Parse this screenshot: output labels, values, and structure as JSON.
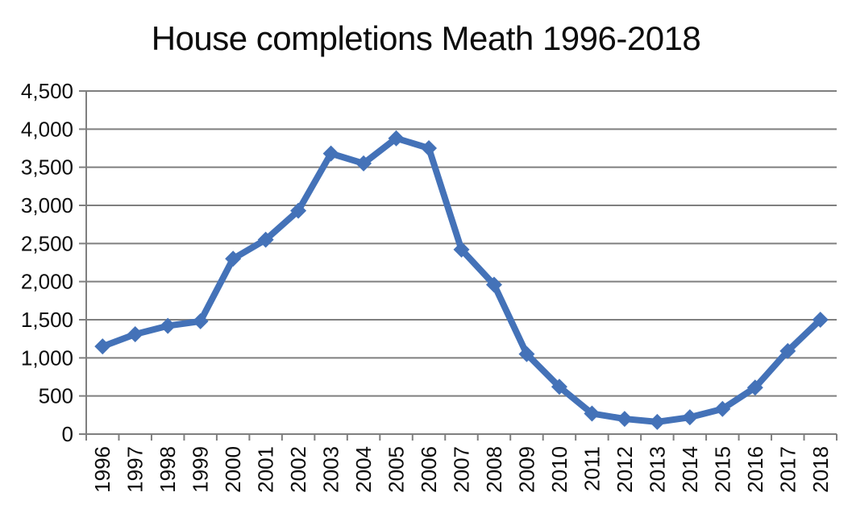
{
  "title": "House completions Meath 1996-2018",
  "colors": {
    "series": "#4472b8",
    "grid": "#7f7f7f",
    "axis": "#7f7f7f",
    "text": "#0d0d0d",
    "background": "#ffffff"
  },
  "chart_data": {
    "type": "line",
    "title": "House completions Meath 1996-2018",
    "categories": [
      "1996",
      "1997",
      "1998",
      "1999",
      "2000",
      "2001",
      "2002",
      "2003",
      "2004",
      "2005",
      "2006",
      "2007",
      "2008",
      "2009",
      "2010",
      "2011",
      "2012",
      "2013",
      "2014",
      "2015",
      "2016",
      "2017",
      "2018"
    ],
    "values": [
      1150,
      1310,
      1420,
      1480,
      2300,
      2550,
      2930,
      3680,
      3550,
      3880,
      3750,
      2420,
      1960,
      1050,
      620,
      270,
      200,
      160,
      220,
      330,
      610,
      1090,
      1500
    ],
    "xlabel": "",
    "ylabel": "",
    "ylim": [
      0,
      4500
    ],
    "ytick_step": 500,
    "ytick_labels": [
      "0",
      "500",
      "1,000",
      "1,500",
      "2,000",
      "2,500",
      "3,000",
      "3,500",
      "4,000",
      "4,500"
    ],
    "grid": "horizontal",
    "legend": "none",
    "marker": "diamond",
    "x_label_rotation": -90
  }
}
